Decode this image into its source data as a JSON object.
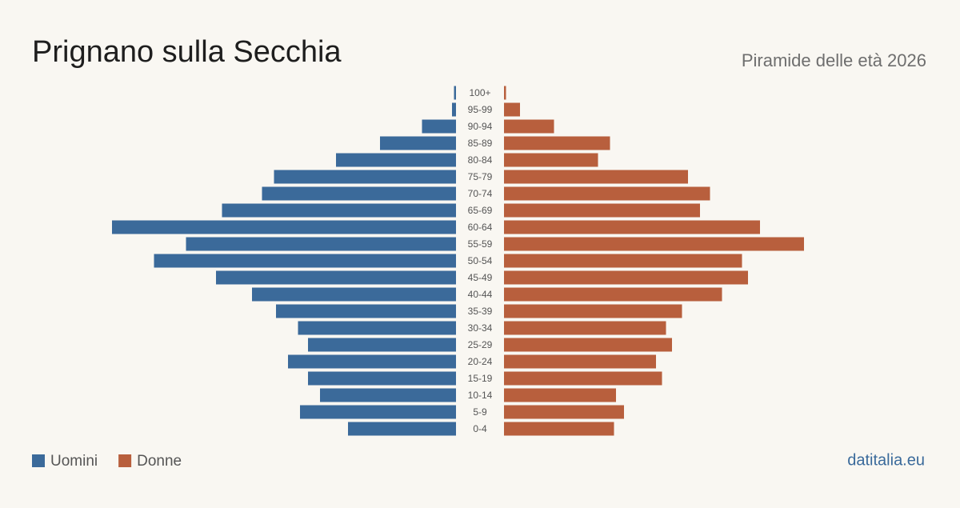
{
  "chart_data": {
    "type": "pyramid",
    "title": "Prignano sulla Secchia",
    "subtitle": "Piramide delle età 2026",
    "source": "datitalia.eu",
    "categories": [
      "100+",
      "95-99",
      "90-94",
      "85-89",
      "80-84",
      "75-79",
      "70-74",
      "65-69",
      "60-64",
      "55-59",
      "50-54",
      "45-49",
      "40-44",
      "35-39",
      "30-34",
      "25-29",
      "20-24",
      "15-19",
      "10-14",
      "5-9",
      "0-4"
    ],
    "series": [
      {
        "name": "Uomini",
        "color": "#3b6a9a",
        "values": [
          1,
          2,
          17,
          38,
          60,
          91,
          97,
          117,
          172,
          135,
          151,
          120,
          102,
          90,
          79,
          74,
          84,
          74,
          68,
          78,
          54
        ]
      },
      {
        "name": "Donne",
        "color": "#b85f3d",
        "values": [
          1,
          8,
          25,
          53,
          47,
          92,
          103,
          98,
          128,
          150,
          119,
          122,
          109,
          89,
          81,
          84,
          76,
          79,
          56,
          60,
          55
        ]
      }
    ]
  }
}
